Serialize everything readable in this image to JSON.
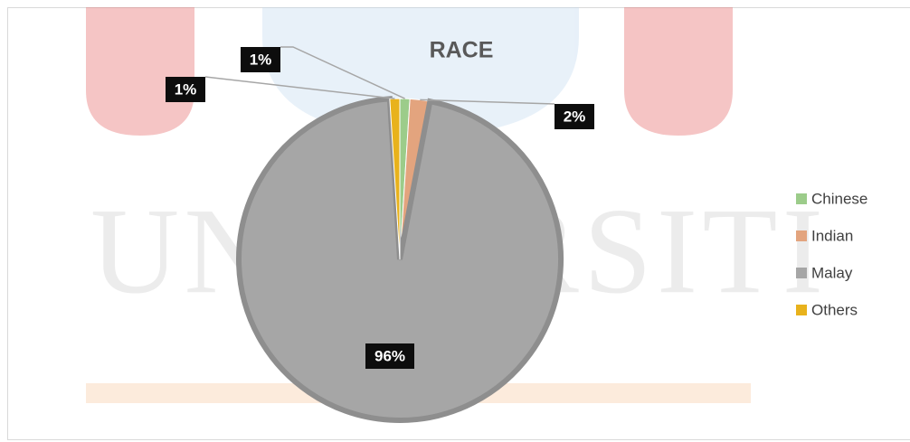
{
  "watermark": "UNIVERSITI",
  "chart_data": {
    "type": "pie",
    "title": "RACE",
    "categories": [
      "Chinese",
      "Indian",
      "Malay",
      "Others"
    ],
    "values": [
      1,
      2,
      96,
      1
    ],
    "value_labels": [
      "1%",
      "2%",
      "96%",
      "1%"
    ],
    "colors": [
      "#9ccc8a",
      "#e3a47e",
      "#a6a6a6",
      "#e8b21c"
    ],
    "legend": "right"
  }
}
